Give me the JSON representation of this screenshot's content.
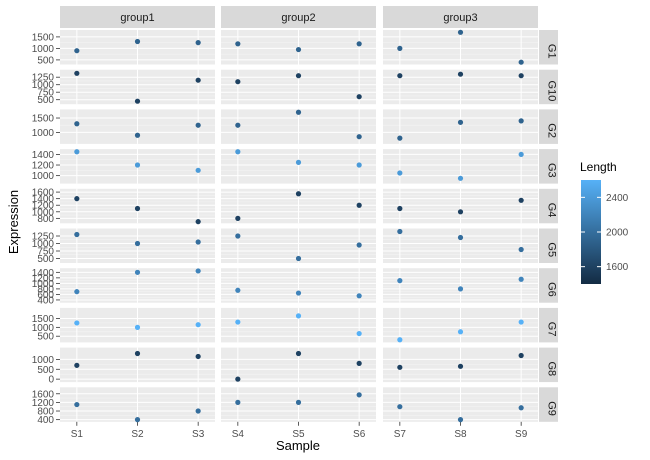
{
  "chart_data": {
    "type": "scatter",
    "title": "",
    "xlabel": "Sample",
    "ylabel": "Expression",
    "column_groups": [
      "group1",
      "group2",
      "group3"
    ],
    "group_samples": {
      "group1": [
        "S1",
        "S2",
        "S3"
      ],
      "group2": [
        "S4",
        "S5",
        "S6"
      ],
      "group3": [
        "S7",
        "S8",
        "S9"
      ]
    },
    "legend": {
      "title": "Length",
      "placement": "right",
      "breaks": [
        1600,
        2000,
        2400
      ],
      "range": [
        1400,
        2600
      ],
      "low_color": "#132B43",
      "high_color": "#56B1F7"
    },
    "panel_background": "#EBEBEB",
    "strip_background": "#D9D9D9",
    "grid": true,
    "rows": [
      {
        "gene": "G1",
        "length": 1900,
        "yticks": [
          500,
          1000,
          1500
        ],
        "ylim": [
          300,
          1800
        ],
        "values": [
          900,
          1300,
          1250,
          1200,
          950,
          1200,
          1000,
          1700,
          400
        ]
      },
      {
        "gene": "G10",
        "length": 1600,
        "yticks": [
          500,
          750,
          1000,
          1250
        ],
        "ylim": [
          350,
          1500
        ],
        "values": [
          1380,
          450,
          1150,
          1100,
          1300,
          600,
          1300,
          1350,
          1300
        ]
      },
      {
        "gene": "G2",
        "length": 1900,
        "yticks": [
          1000,
          1500
        ],
        "ylim": [
          600,
          1800
        ],
        "values": [
          1300,
          900,
          1250,
          1250,
          1700,
          850,
          800,
          1350,
          1400
        ]
      },
      {
        "gene": "G3",
        "length": 2400,
        "yticks": [
          1000,
          1200,
          1400
        ],
        "ylim": [
          850,
          1500
        ],
        "values": [
          1450,
          1200,
          1100,
          1450,
          1250,
          1200,
          1050,
          950,
          1400
        ]
      },
      {
        "gene": "G4",
        "length": 1600,
        "yticks": [
          800,
          1000,
          1200,
          1400,
          1600
        ],
        "ylim": [
          650,
          1700
        ],
        "values": [
          1400,
          1100,
          700,
          800,
          1550,
          1200,
          1100,
          1000,
          1350
        ]
      },
      {
        "gene": "G5",
        "length": 2000,
        "yticks": [
          500,
          750,
          1000,
          1250
        ],
        "ylim": [
          350,
          1500
        ],
        "values": [
          1300,
          1000,
          1050,
          1250,
          500,
          950,
          1400,
          1200,
          800
        ]
      },
      {
        "gene": "G6",
        "length": 2200,
        "yticks": [
          400,
          600,
          800,
          1000,
          1200,
          1400
        ],
        "ylim": [
          300,
          1550
        ],
        "values": [
          700,
          1400,
          1450,
          750,
          650,
          550,
          1100,
          800,
          1150
        ]
      },
      {
        "gene": "G7",
        "length": 2600,
        "yticks": [
          500,
          1000,
          1500
        ],
        "ylim": [
          150,
          2100
        ],
        "values": [
          1250,
          1000,
          1150,
          1300,
          1650,
          650,
          300,
          750,
          1300
        ]
      },
      {
        "gene": "G8",
        "length": 1600,
        "yticks": [
          0,
          500,
          1000
        ],
        "ylim": [
          -150,
          1600
        ],
        "values": [
          700,
          1300,
          1150,
          0,
          1300,
          800,
          600,
          650,
          1200
        ]
      },
      {
        "gene": "G9",
        "length": 2000,
        "yticks": [
          400,
          800,
          1200,
          1600
        ],
        "ylim": [
          300,
          1900
        ],
        "values": [
          1100,
          400,
          800,
          1200,
          1200,
          1550,
          1000,
          400,
          950
        ]
      }
    ]
  }
}
